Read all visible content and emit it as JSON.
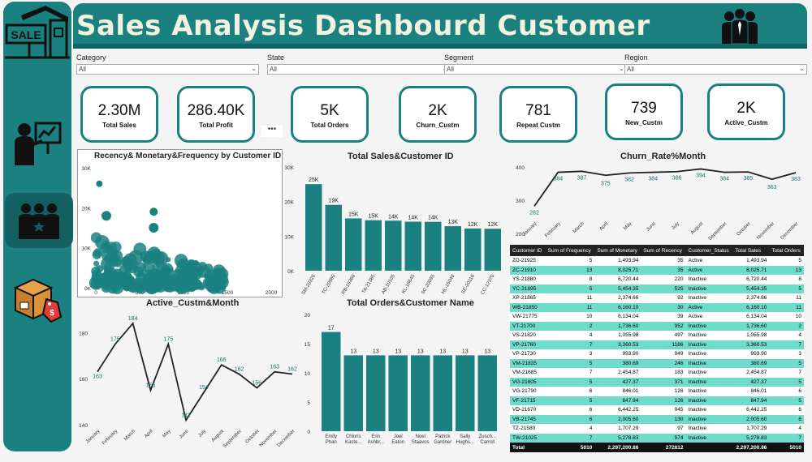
{
  "header": {
    "title": "Sales Analysis Dashbourd Customer"
  },
  "sidebar": {
    "sale_sign": "SALE"
  },
  "filters": [
    {
      "label": "Category",
      "value": "All"
    },
    {
      "label": "State",
      "value": "All"
    },
    {
      "label": "Segment",
      "value": "All"
    },
    {
      "label": "Region",
      "value": "All"
    }
  ],
  "kpis": [
    {
      "value": "2.30M",
      "label": "Total Sales"
    },
    {
      "value": "286.40K",
      "label": "Total Profit"
    },
    {
      "value": "5K",
      "label": "Total Orders"
    },
    {
      "value": "2K",
      "label": "Churn_Custm"
    },
    {
      "value": "781",
      "label": "Repeat Custm"
    },
    {
      "value": "739",
      "label": "New_Custm"
    },
    {
      "value": "2K",
      "label": "Active_Custm"
    }
  ],
  "more_options": "•••",
  "colors": {
    "teal": "#1a8180",
    "teal_dark": "#12605f",
    "row_alt": "#6fdccb",
    "header_text": "#f3f2df"
  },
  "chart_data": [
    {
      "type": "scatter",
      "title": "Recency& Monetary&Frequency by Customer ID",
      "xlim": [
        0,
        2000
      ],
      "ylim": [
        0,
        30000
      ],
      "xticks": [
        "0",
        "500",
        "1000",
        "1500",
        "2000"
      ],
      "yticks": [
        "0K",
        "10K",
        "20K",
        "30K"
      ]
    },
    {
      "type": "bar",
      "title": "Total Sales&Customer ID",
      "categories": [
        "SM-20320",
        "TC-20980",
        "RB-19360",
        "TA-21385",
        "AB-10105",
        "KL-16645",
        "SC-20095",
        "HL-15040",
        "SE-20110",
        "CC-12370"
      ],
      "values": [
        25040,
        19050,
        15120,
        14600,
        14470,
        14180,
        14140,
        12870,
        12210,
        12130
      ],
      "data_labels": [
        "25K",
        "19K",
        "15K",
        "15K",
        "14K",
        "14K",
        "14K",
        "13K",
        "12K",
        "12K"
      ],
      "yticks": [
        "0K",
        "10K",
        "20K",
        "30K"
      ],
      "ylim": [
        0,
        30000
      ]
    },
    {
      "type": "line",
      "title": "Churn_Rate%Month",
      "categories": [
        "January",
        "February",
        "March",
        "April",
        "May",
        "June",
        "July",
        "August",
        "September",
        "October",
        "November",
        "December"
      ],
      "values": [
        282,
        384,
        387,
        375,
        382,
        384,
        386,
        394,
        384,
        385,
        363,
        383
      ],
      "yticks": [
        "200",
        "300",
        "400"
      ],
      "ylim": [
        200,
        400
      ]
    },
    {
      "type": "line",
      "title": "Active_Custm&Month",
      "categories": [
        "January",
        "February",
        "March",
        "April",
        "May",
        "June",
        "July",
        "August",
        "September",
        "October",
        "November",
        "December"
      ],
      "values": [
        163,
        175,
        184,
        155,
        175,
        142,
        154,
        166,
        162,
        156,
        163,
        162
      ],
      "yticks": [
        "140",
        "160",
        "180"
      ],
      "ylim": [
        140,
        190
      ]
    },
    {
      "type": "bar",
      "title": "Total Orders&Customer Name",
      "categories": [
        "Emily Phan",
        "Chloris Kaste...",
        "Erin Ashbr...",
        "Joel Eaton",
        "Noel Staavos",
        "Patrick Gardner",
        "Sally Hughs...",
        "Zusch... Carroll"
      ],
      "values": [
        17,
        13,
        13,
        13,
        13,
        13,
        13,
        13
      ],
      "yticks": [
        "0",
        "5",
        "10",
        "15",
        "20"
      ],
      "ylim": [
        0,
        20
      ]
    }
  ],
  "table": {
    "columns": [
      "Customer ID",
      "Sum of Frequency",
      "Sum of Monetary",
      "Sum of Recency",
      "Customer_Status",
      "Total Sales",
      "Total Orders"
    ],
    "rows": [
      [
        "ZD-21925",
        "5",
        "1,493.94",
        "35",
        "Active",
        "1,493.94",
        "5"
      ],
      [
        "ZC-21910",
        "13",
        "8,025.71",
        "35",
        "Active",
        "8,025.71",
        "13"
      ],
      [
        "YS-21880",
        "8",
        "6,720.44",
        "220",
        "Inactive",
        "6,720.44",
        "8"
      ],
      [
        "YC-21895",
        "5",
        "5,454.35",
        "525",
        "Inactive",
        "5,454.35",
        "5"
      ],
      [
        "XP-21865",
        "11",
        "2,374.66",
        "92",
        "Inactive",
        "2,374.66",
        "11"
      ],
      [
        "WB-21850",
        "11",
        "6,160.10",
        "30",
        "Active",
        "6,160.10",
        "11"
      ],
      [
        "VW-21775",
        "10",
        "6,134.04",
        "39",
        "Active",
        "6,134.04",
        "10"
      ],
      [
        "VT-21700",
        "2",
        "1,736.60",
        "952",
        "Inactive",
        "1,736.60",
        "2"
      ],
      [
        "VS-21820",
        "4",
        "1,055.98",
        "497",
        "Inactive",
        "1,055.98",
        "4"
      ],
      [
        "VP-21760",
        "7",
        "3,360.53",
        "1186",
        "Inactive",
        "3,360.53",
        "7"
      ],
      [
        "VP-21730",
        "3",
        "993.90",
        "949",
        "Inactive",
        "993.90",
        "3"
      ],
      [
        "VM-21835",
        "5",
        "380.69",
        "246",
        "Inactive",
        "380.69",
        "5"
      ],
      [
        "VM-21685",
        "7",
        "2,454.87",
        "183",
        "Inactive",
        "2,454.87",
        "7"
      ],
      [
        "VG-21805",
        "5",
        "427.37",
        "371",
        "Inactive",
        "427.37",
        "5"
      ],
      [
        "VG-21790",
        "6",
        "846.01",
        "126",
        "Inactive",
        "846.01",
        "6"
      ],
      [
        "VF-21715",
        "5",
        "847.94",
        "126",
        "Inactive",
        "847.94",
        "5"
      ],
      [
        "VD-21670",
        "6",
        "6,442.25",
        "945",
        "Inactive",
        "6,442.25",
        "6"
      ],
      [
        "VB-21745",
        "6",
        "2,005.60",
        "130",
        "Inactive",
        "2,005.60",
        "6"
      ],
      [
        "TZ-21580",
        "4",
        "1,707.29",
        "97",
        "Inactive",
        "1,707.29",
        "4"
      ],
      [
        "TW-21025",
        "7",
        "5,278.83",
        "974",
        "Inactive",
        "5,278.83",
        "7"
      ]
    ],
    "total": [
      "Total",
      "5010",
      "2,297,200.86",
      "272812",
      "",
      "2,297,200.86",
      "5010"
    ]
  }
}
